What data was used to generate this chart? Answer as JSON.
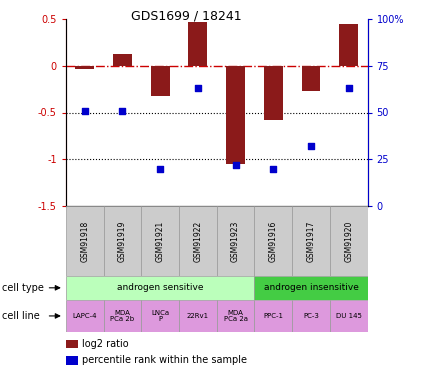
{
  "title": "GDS1699 / 18241",
  "samples": [
    "GSM91918",
    "GSM91919",
    "GSM91921",
    "GSM91922",
    "GSM91923",
    "GSM91916",
    "GSM91917",
    "GSM91920"
  ],
  "log2_ratio": [
    -0.04,
    0.12,
    -0.32,
    0.47,
    -1.05,
    -0.58,
    -0.27,
    0.44
  ],
  "percentile_rank": [
    51,
    51,
    20,
    63,
    22,
    20,
    32,
    63
  ],
  "ylim_left": [
    -1.5,
    0.5
  ],
  "ylim_right": [
    0,
    100
  ],
  "yticks_left": [
    -1.5,
    -1.0,
    -0.5,
    0.0,
    0.5
  ],
  "yticks_right": [
    0,
    25,
    50,
    75,
    100
  ],
  "ytick_labels_left": [
    "-1.5",
    "-1",
    "-0.5",
    "0",
    "0.5"
  ],
  "ytick_labels_right": [
    "0",
    "25",
    "50",
    "75",
    "100%"
  ],
  "hline_0_color": "#cc0000",
  "hline_dot_color": "#000000",
  "hline_dot1": -0.5,
  "hline_dot2": -1.0,
  "bar_color": "#8b1a1a",
  "dot_color": "#0000cc",
  "cell_type_groups": [
    {
      "label": "androgen sensitive",
      "start": 0,
      "end": 5,
      "color": "#bbffbb"
    },
    {
      "label": "androgen insensitive",
      "start": 5,
      "end": 8,
      "color": "#44cc44"
    }
  ],
  "cell_lines": [
    {
      "label": "LAPC-4",
      "start": 0,
      "end": 1
    },
    {
      "label": "MDA\nPCa 2b",
      "start": 1,
      "end": 2
    },
    {
      "label": "LNCa\nP",
      "start": 2,
      "end": 3
    },
    {
      "label": "22Rv1",
      "start": 3,
      "end": 4
    },
    {
      "label": "MDA\nPCa 2a",
      "start": 4,
      "end": 5
    },
    {
      "label": "PPC-1",
      "start": 5,
      "end": 6
    },
    {
      "label": "PC-3",
      "start": 6,
      "end": 7
    },
    {
      "label": "DU 145",
      "start": 7,
      "end": 8
    }
  ],
  "cell_line_color": "#dd99dd",
  "sample_box_color": "#cccccc",
  "legend_items": [
    {
      "label": "log2 ratio",
      "color": "#8b1a1a"
    },
    {
      "label": "percentile rank within the sample",
      "color": "#0000cc"
    }
  ]
}
